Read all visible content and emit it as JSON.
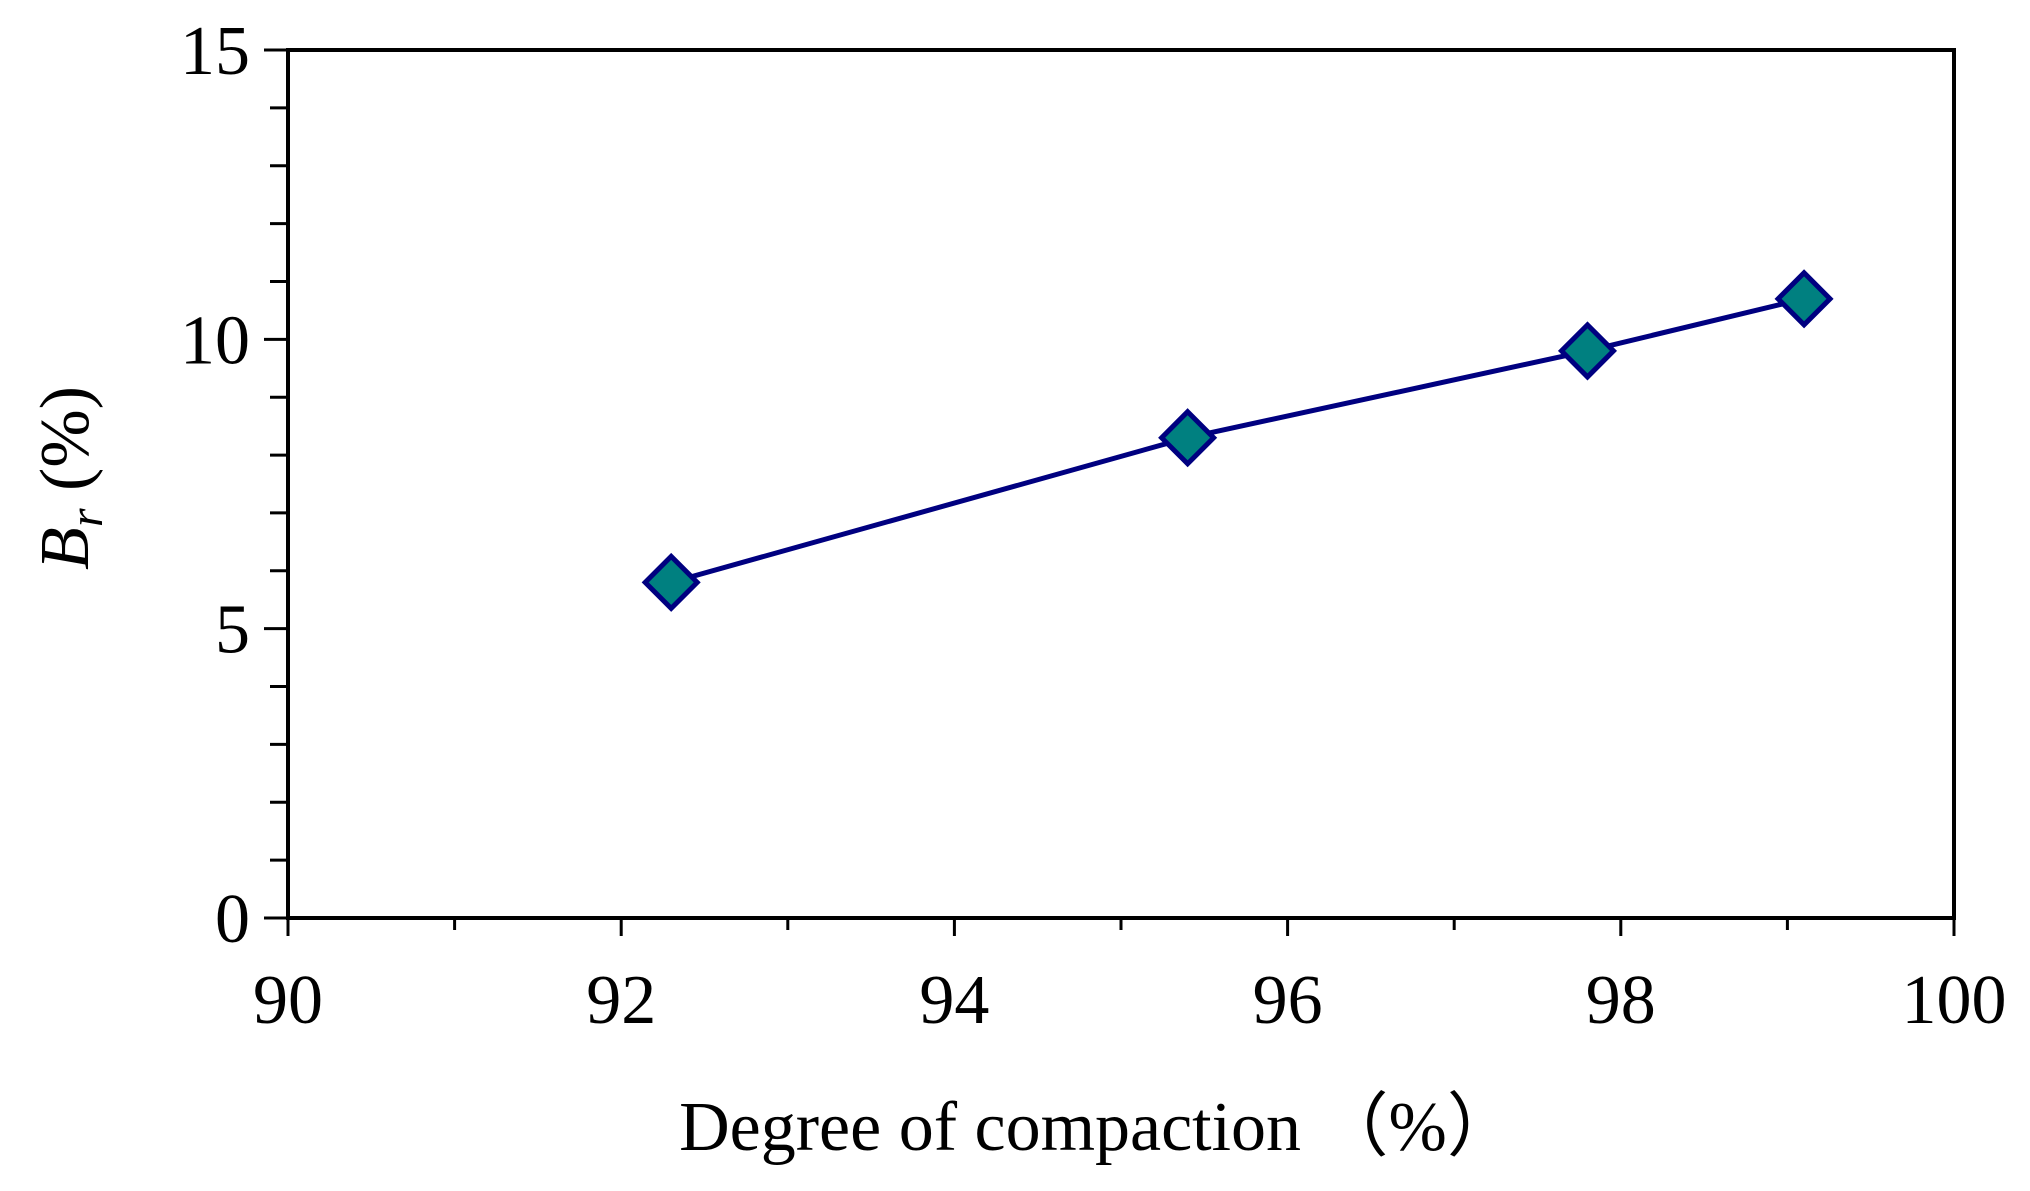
{
  "chart_data": {
    "type": "line",
    "title": "",
    "xlabel": "Degree of compaction （%）",
    "ylabel": {
      "base": "B",
      "subscript": "r",
      "suffix": " (%)"
    },
    "xlim": [
      90,
      100
    ],
    "ylim": [
      0,
      15
    ],
    "x_ticks": [
      90,
      92,
      94,
      96,
      98,
      100
    ],
    "y_ticks": [
      0,
      5,
      10,
      15
    ],
    "x_minor_step": 1,
    "y_minor_step": 1,
    "grid": false,
    "legend": "none",
    "series": [
      {
        "x": [
          92.3,
          95.4,
          97.8,
          99.1
        ],
        "y": [
          5.8,
          8.3,
          9.8,
          10.7
        ],
        "marker": "diamond",
        "line_color": "#000080",
        "marker_fill": "#008080",
        "marker_edge": "#000080"
      }
    ]
  }
}
